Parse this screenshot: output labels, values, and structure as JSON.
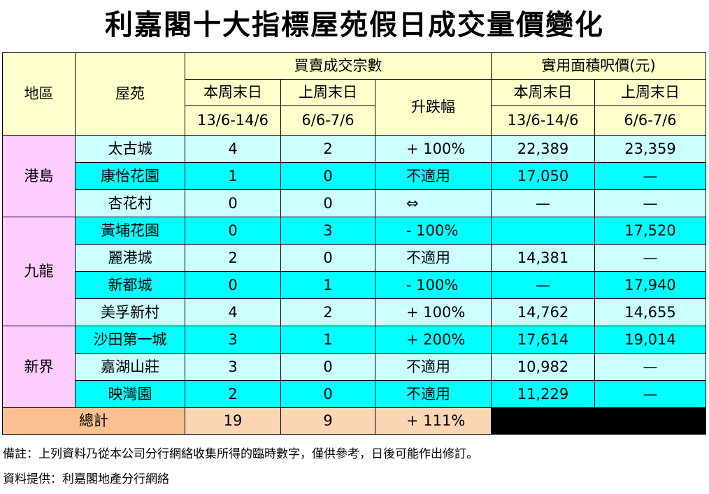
{
  "title": "利嘉閣十大指標屋苑假日成交量價變化",
  "header": {
    "district": "地區",
    "estate": "屋苑",
    "txn_group": "買賣成交宗數",
    "price_group": "實用面積呎價(元)",
    "this_weekend": "本周末日",
    "this_dates": "13/6-14/6",
    "last_weekend": "上周末日",
    "last_dates": "6/6-7/6",
    "change": "升跌幅"
  },
  "districts": {
    "hk": "港島",
    "kln": "九龍",
    "nt": "新界"
  },
  "rows": [
    {
      "estate": "太古城",
      "this": "4",
      "last": "2",
      "change": "+ 100%",
      "price_this": "22,389",
      "price_last": "23,359"
    },
    {
      "estate": "康怡花園",
      "this": "1",
      "last": "0",
      "change": "不適用",
      "price_this": "17,050",
      "price_last": "—"
    },
    {
      "estate": "杏花村",
      "this": "0",
      "last": "0",
      "change": "⇔",
      "price_this": "—",
      "price_last": "—"
    },
    {
      "estate": "黃埔花園",
      "this": "0",
      "last": "3",
      "change": "- 100%",
      "price_this": "",
      "price_last": "17,520"
    },
    {
      "estate": "麗港城",
      "this": "2",
      "last": "0",
      "change": "不適用",
      "price_this": "14,381",
      "price_last": "—"
    },
    {
      "estate": "新都城",
      "this": "0",
      "last": "1",
      "change": "- 100%",
      "price_this": "—",
      "price_last": "17,940"
    },
    {
      "estate": "美孚新村",
      "this": "4",
      "last": "2",
      "change": "+ 100%",
      "price_this": "14,762",
      "price_last": "14,655"
    },
    {
      "estate": "沙田第一城",
      "this": "3",
      "last": "1",
      "change": "+ 200%",
      "price_this": "17,614",
      "price_last": "19,014"
    },
    {
      "estate": "嘉湖山莊",
      "this": "3",
      "last": "0",
      "change": "不適用",
      "price_this": "10,982",
      "price_last": "—"
    },
    {
      "estate": "映灣園",
      "this": "2",
      "last": "0",
      "change": "不適用",
      "price_this": "11,229",
      "price_last": "—"
    }
  ],
  "total": {
    "label": "總計",
    "this": "19",
    "last": "9",
    "change": "+ 111%"
  },
  "notes": {
    "remark": "備註：上列資料乃從本公司分行網絡收集所得的臨時數字，僅供參考，日後可能作出修訂。",
    "source": "資料提供：利嘉閣地產分行網絡"
  },
  "colors": {
    "header": "#ffffcc",
    "district": "#ffccff",
    "row_pale": "#ccffff",
    "row_cyan": "#00ffff",
    "total_label": "#fac090",
    "total_cells": "#fcd5b4"
  }
}
